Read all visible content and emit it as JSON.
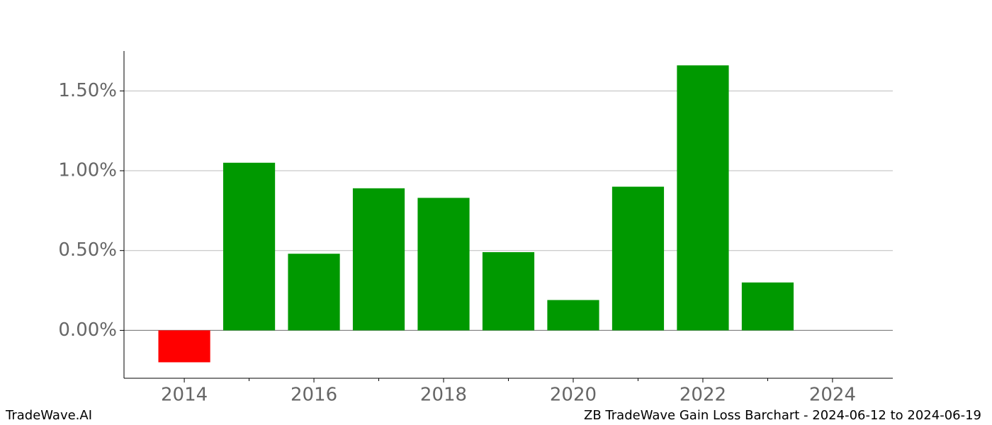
{
  "chart_data": {
    "type": "bar",
    "x": [
      2014,
      2015,
      2016,
      2017,
      2018,
      2019,
      2020,
      2021,
      2022,
      2023
    ],
    "values": [
      -0.2,
      1.05,
      0.48,
      0.89,
      0.83,
      0.49,
      0.19,
      0.9,
      1.66,
      0.3
    ],
    "positive_color": "#009900",
    "negative_color": "#ff0000",
    "xlim": [
      2013.07,
      2024.93
    ],
    "xticks": [
      2014,
      2016,
      2018,
      2020,
      2022,
      2024
    ],
    "xminorticks": [
      2015,
      2017,
      2019,
      2021,
      2023
    ],
    "ylim": [
      -0.3,
      1.75
    ],
    "yticks": [
      {
        "value": 0,
        "label": "0.00%"
      },
      {
        "value": 0.5,
        "label": "0.50%"
      },
      {
        "value": 1.0,
        "label": "1.00%"
      },
      {
        "value": 1.5,
        "label": "1.50%"
      }
    ],
    "grid": true
  },
  "footer": {
    "left": "TradeWave.AI",
    "right": "ZB TradeWave Gain Loss Barchart - 2024-06-12 to 2024-06-19"
  }
}
